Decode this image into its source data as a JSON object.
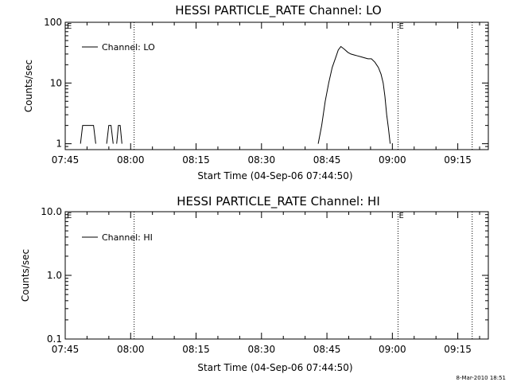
{
  "chart_data": [
    {
      "type": "line",
      "title": "HESSI PARTICLE_RATE Channel: LO",
      "xlabel": "Start Time (04-Sep-06 07:44:50)",
      "ylabel": "Counts/sec",
      "y_scale": "log",
      "ylim": [
        0.8,
        100
      ],
      "xlim_minutes": [
        0,
        97
      ],
      "x_ticks": [
        {
          "label": "07:45",
          "minute": 0
        },
        {
          "label": "08:00",
          "minute": 15
        },
        {
          "label": "08:15",
          "minute": 30
        },
        {
          "label": "08:30",
          "minute": 45
        },
        {
          "label": "08:45",
          "minute": 60
        },
        {
          "label": "09:00",
          "minute": 75
        },
        {
          "label": "09:15",
          "minute": 90
        }
      ],
      "y_ticks": [
        {
          "label": "1",
          "value": 1
        },
        {
          "label": "10",
          "value": 10
        },
        {
          "label": "100",
          "value": 100
        }
      ],
      "legend": {
        "label": "Channel: LO",
        "position": "top-left"
      },
      "vertical_markers": [
        {
          "minute": 15.8,
          "label": ""
        },
        {
          "minute": 76.3,
          "label": "E"
        },
        {
          "minute": 93.3,
          "label": ""
        }
      ],
      "corner_label": "E",
      "series": [
        {
          "name": "Channel: LO",
          "segments": [
            {
              "x": [
                3.5,
                4.0,
                6.5,
                7.0
              ],
              "y": [
                1,
                2,
                2,
                1
              ]
            },
            {
              "x": [
                9.5,
                10.0,
                10.5,
                11.0
              ],
              "y": [
                1,
                2,
                2,
                1
              ]
            },
            {
              "x": [
                11.8,
                12.2,
                12.6,
                13.0
              ],
              "y": [
                1,
                2,
                2,
                1
              ]
            },
            {
              "x": [
                58.0,
                58.8,
                59.6,
                60.4,
                61.2,
                62.0,
                62.6,
                63.2,
                64.0,
                64.8,
                65.5,
                66.2,
                67.0,
                67.8,
                68.6,
                69.4,
                70.2,
                71.0,
                71.8,
                72.4,
                72.9,
                73.3,
                73.7,
                74.1,
                74.5
              ],
              "y": [
                1,
                2,
                5,
                10,
                18,
                26,
                35,
                40,
                36,
                32,
                30,
                29,
                28,
                27,
                26,
                25,
                25,
                22,
                18,
                14,
                10,
                6,
                3,
                1.8,
                1
              ]
            }
          ]
        }
      ]
    },
    {
      "type": "line",
      "title": "HESSI PARTICLE_RATE Channel: HI",
      "xlabel": "Start Time (04-Sep-06 07:44:50)",
      "ylabel": "Counts/sec",
      "y_scale": "log",
      "ylim": [
        0.1,
        10
      ],
      "xlim_minutes": [
        0,
        97
      ],
      "x_ticks": [
        {
          "label": "07:45",
          "minute": 0
        },
        {
          "label": "08:00",
          "minute": 15
        },
        {
          "label": "08:15",
          "minute": 30
        },
        {
          "label": "08:30",
          "minute": 45
        },
        {
          "label": "08:45",
          "minute": 60
        },
        {
          "label": "09:00",
          "minute": 75
        },
        {
          "label": "09:15",
          "minute": 90
        }
      ],
      "y_ticks": [
        {
          "label": "0.1",
          "value": 0.1
        },
        {
          "label": "1.0",
          "value": 1.0
        },
        {
          "label": "10.0",
          "value": 10.0
        }
      ],
      "legend": {
        "label": "Channel: HI",
        "position": "top-left"
      },
      "vertical_markers": [
        {
          "minute": 15.8,
          "label": ""
        },
        {
          "minute": 76.3,
          "label": "E"
        },
        {
          "minute": 93.3,
          "label": ""
        }
      ],
      "corner_label": "E",
      "series": [
        {
          "name": "Channel: HI",
          "segments": []
        }
      ]
    }
  ],
  "footer": {
    "timestamp": "8-Mar-2010 18:51"
  }
}
